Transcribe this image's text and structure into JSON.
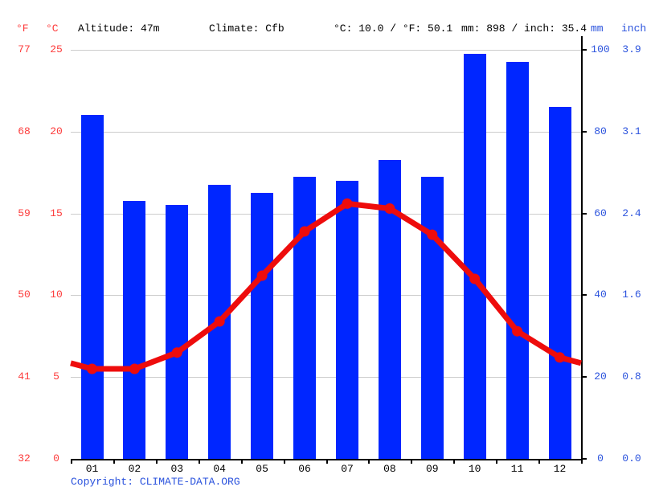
{
  "header": {
    "f_unit": "°F",
    "c_unit": "°C",
    "altitude": "Altitude: 47m",
    "climate": "Climate: Cfb",
    "temp_summary": "°C: 10.0 / °F: 50.1",
    "precip_summary": "mm: 898 / inch: 35.4",
    "mm_unit": "mm",
    "inch_unit": "inch"
  },
  "axes": {
    "left_f_ticks": [
      "77",
      "68",
      "59",
      "50",
      "41",
      "32"
    ],
    "left_c_ticks": [
      "25",
      "20",
      "15",
      "10",
      "5",
      "0"
    ],
    "right_mm_ticks": [
      "100",
      "80",
      "60",
      "40",
      "20",
      "0"
    ],
    "right_inch_ticks": [
      "3.9",
      "3.1",
      "2.4",
      "1.6",
      "0.8",
      "0.0"
    ]
  },
  "footer": {
    "copyright_label": "Copyright:",
    "copyright_link": "CLIMATE-DATA.ORG"
  },
  "colors": {
    "bar_blue": "#0026ff",
    "line_red": "#ee0c0c",
    "red_text": "#fd3c3c",
    "blue_text": "#2a52dd",
    "grid_gray": "#cccccc",
    "axis_black": "#000000"
  },
  "chart_data": {
    "type": "bar",
    "title": "Climate graph (climograph): monthly precipitation bars and temperature line",
    "categories": [
      "01",
      "02",
      "03",
      "04",
      "05",
      "06",
      "07",
      "08",
      "09",
      "10",
      "11",
      "12"
    ],
    "series": [
      {
        "name": "Precipitation (mm)",
        "type": "bar",
        "axis": "right",
        "values": [
          84,
          63,
          62,
          67,
          65,
          69,
          68,
          73,
          69,
          99,
          97,
          86
        ]
      },
      {
        "name": "Temperature (°C)",
        "type": "line",
        "axis": "left",
        "values": [
          5.5,
          5.5,
          6.5,
          8.4,
          11.2,
          13.9,
          15.6,
          15.3,
          13.7,
          11.0,
          7.8,
          6.2
        ]
      }
    ],
    "y_left": {
      "label": "°C",
      "min": 0,
      "max": 25,
      "ticks_c": [
        25,
        20,
        15,
        10,
        5,
        0
      ],
      "ticks_f": [
        77,
        68,
        59,
        50,
        41,
        32
      ]
    },
    "y_right": {
      "label": "mm",
      "min": 0,
      "max": 100,
      "ticks_mm": [
        100,
        80,
        60,
        40,
        20,
        0
      ],
      "ticks_inch": [
        3.9,
        3.1,
        2.4,
        1.6,
        0.8,
        0.0
      ]
    },
    "grid": true,
    "legend_position": "none",
    "annotations": {
      "altitude": "47m",
      "climate_class": "Cfb",
      "annual_mean_c": 10.0,
      "annual_mean_f": 50.1,
      "annual_precip_mm": 898,
      "annual_precip_inch": 35.4
    }
  }
}
